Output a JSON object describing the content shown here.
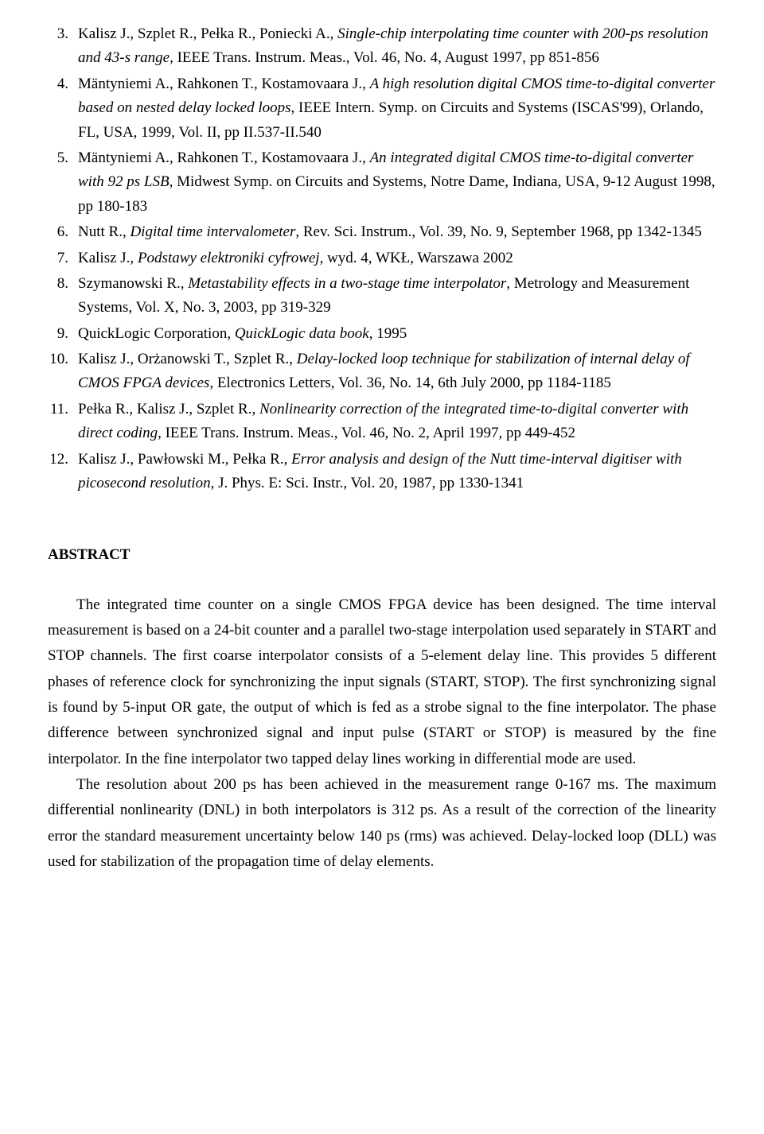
{
  "references": [
    {
      "num": "3.",
      "authors": "Kalisz J., Szplet R., Pełka R., Poniecki A., ",
      "title": "Single-chip interpolating time counter with 200-ps resolution and 43-s range",
      "rest": ", IEEE Trans. Instrum. Meas., Vol. 46, No. 4, August 1997, pp 851-856"
    },
    {
      "num": "4.",
      "authors": "Mäntyniemi A., Rahkonen T., Kostamovaara J., ",
      "title": "A high resolution digital CMOS time-to-digital converter based on nested delay locked loops",
      "rest": ", IEEE Intern. Symp. on Circuits and Systems (ISCAS'99), Orlando, FL, USA, 1999, Vol. II, pp II.537-II.540"
    },
    {
      "num": "5.",
      "authors": "Mäntyniemi A., Rahkonen T., Kostamovaara J., ",
      "title": "An integrated digital CMOS time-to-digital converter with 92 ps LSB",
      "rest": ", Midwest Symp. on Circuits and Systems, Notre Dame, Indiana, USA, 9-12 August 1998, pp 180-183"
    },
    {
      "num": "6.",
      "authors": "Nutt R., ",
      "title": "Digital time intervalometer",
      "rest": ", Rev. Sci. Instrum., Vol. 39, No. 9, September 1968, pp 1342-1345"
    },
    {
      "num": "7.",
      "authors": "Kalisz J., ",
      "title": "Podstawy elektroniki cyfrowej",
      "rest": ", wyd. 4, WKŁ, Warszawa 2002"
    },
    {
      "num": "8.",
      "authors": "Szymanowski R., ",
      "title": "Metastability effects in a two-stage time interpolator",
      "rest": ", Metrology and Measurement Systems, Vol. X, No. 3, 2003, pp 319-329"
    },
    {
      "num": "9.",
      "authors": "QuickLogic Corporation, ",
      "title": "QuickLogic data book",
      "rest": ", 1995"
    },
    {
      "num": "10.",
      "authors": "Kalisz J., Orżanowski T., Szplet R., ",
      "title": "Delay-locked loop technique for stabilization of internal delay of CMOS FPGA devices",
      "rest": ", Electronics Letters, Vol. 36, No. 14, 6th July 2000, pp 1184-1185"
    },
    {
      "num": "11.",
      "authors": "Pełka R., Kalisz J., Szplet R., ",
      "title": "Nonlinearity correction of the integrated time-to-digital converter with direct coding",
      "rest": ", IEEE Trans. Instrum. Meas., Vol. 46, No. 2, April 1997, pp 449-452"
    },
    {
      "num": "12.",
      "authors": "Kalisz J., Pawłowski M., Pełka R., ",
      "title": "Error analysis and design of the Nutt time-interval digitiser with picosecond resolution",
      "rest": ", J. Phys. E: Sci. Instr., Vol. 20, 1987, pp 1330-1341"
    }
  ],
  "abstract_title": "ABSTRACT",
  "abstract_p1": "The integrated time counter on a single CMOS FPGA device has been designed. The time interval measurement is based on a 24-bit counter and a parallel two-stage interpolation used separately in START and STOP channels. The first coarse interpolator consists of a 5-element delay line. This provides 5 different phases of reference clock for synchronizing the input signals (START, STOP). The first synchronizing signal is found by 5-input OR gate, the output of which is fed as a strobe signal to the fine interpolator. The phase difference between synchronized signal and input pulse (START or STOP) is measured by the fine interpolator. In the fine interpolator two tapped delay lines working in differential mode are used.",
  "abstract_p2": "The resolution about 200 ps has been achieved in the measurement range 0-167 ms. The maximum differential nonlinearity (DNL) in both interpolators is 312 ps. As a result of the correction of the linearity error the standard measurement uncertainty below 140 ps (rms) was achieved. Delay-locked loop (DLL) was used for stabilization of the propagation time of delay elements."
}
